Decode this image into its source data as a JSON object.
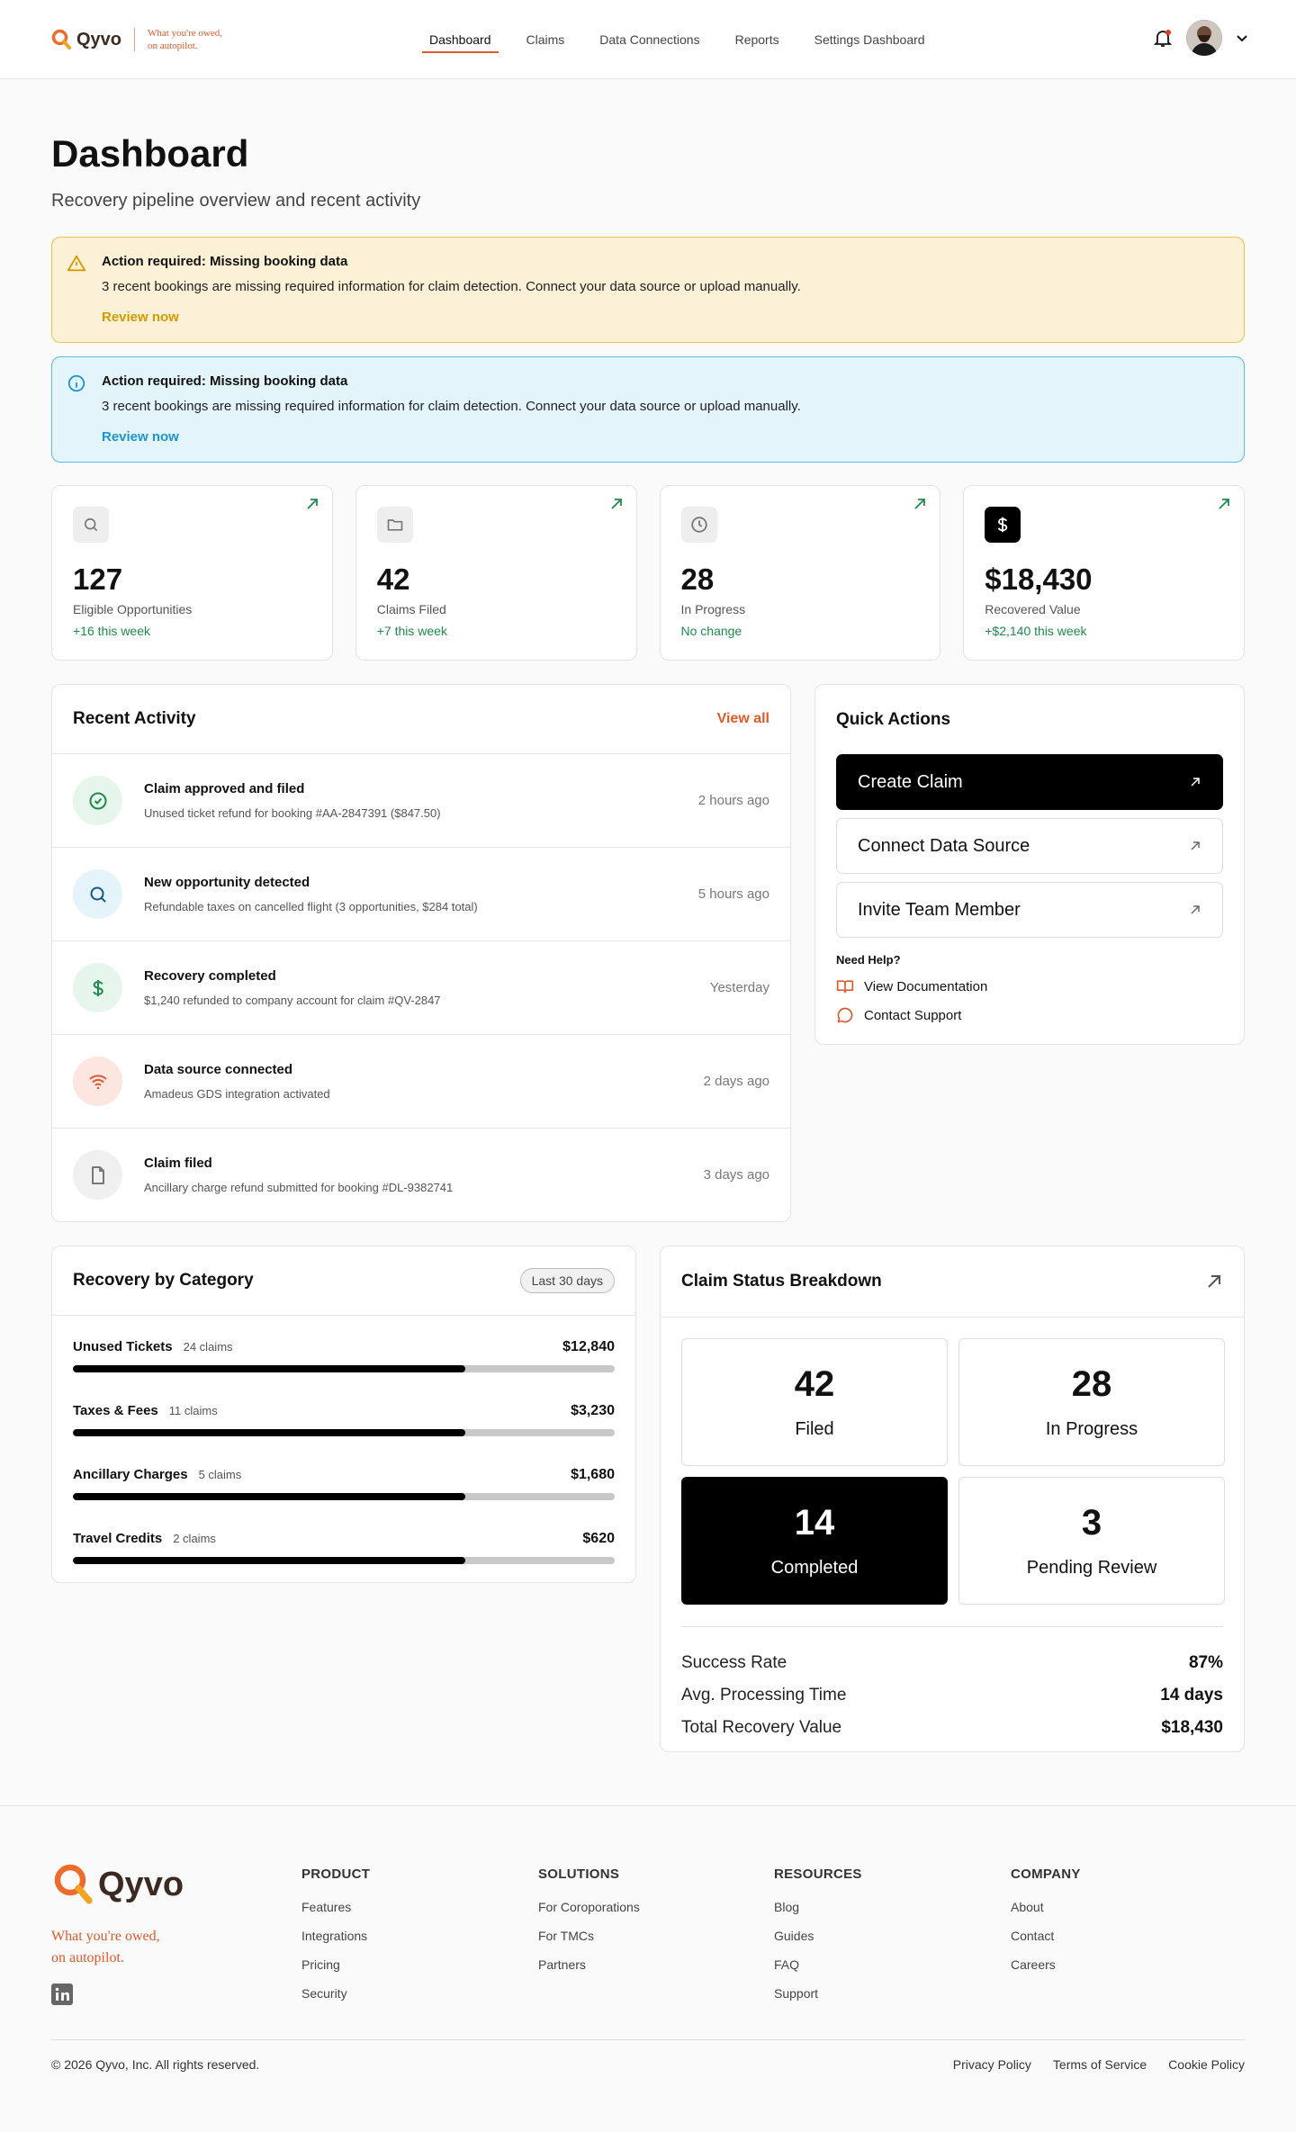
{
  "header": {
    "brand": "Qyvo",
    "tagline": [
      "What you're owed,",
      "on autopilot."
    ],
    "nav": [
      "Dashboard",
      "Claims",
      "Data Connections",
      "Reports",
      "Settings Dashboard"
    ]
  },
  "page": {
    "title": "Dashboard",
    "subtitle": "Recovery pipeline overview and recent activity"
  },
  "alerts": [
    {
      "title": "Action required: Missing booking data",
      "message": "3 recent bookings are missing required information for claim detection. Connect your data source or upload manually.",
      "action": "Review now"
    },
    {
      "title": "Action required: Missing booking data",
      "message": "3 recent bookings are missing required information for claim detection. Connect your data source or upload manually.",
      "action": "Review now"
    }
  ],
  "stats": [
    {
      "value": "127",
      "label": "Eligible Opportunities",
      "change": "+16 this week"
    },
    {
      "value": "42",
      "label": "Claims Filed",
      "change": "+7 this week"
    },
    {
      "value": "28",
      "label": "In Progress",
      "change": "No change"
    },
    {
      "value": "$18,430",
      "label": "Recovered Value",
      "change": "+$2,140 this week"
    }
  ],
  "recent_activity": {
    "title": "Recent Activity",
    "action": "View all",
    "items": [
      {
        "title": "Claim approved and filed",
        "detail": "Unused ticket refund for booking #AA-2847391 ($847.50)",
        "time": "2 hours ago"
      },
      {
        "title": "New opportunity detected",
        "detail": "Refundable taxes on cancelled flight (3 opportunities, $284 total)",
        "time": "5 hours ago"
      },
      {
        "title": "Recovery completed",
        "detail": "$1,240 refunded to company account for claim #QV-2847",
        "time": "Yesterday"
      },
      {
        "title": "Data source connected",
        "detail": "Amadeus GDS integration activated",
        "time": "2 days ago"
      },
      {
        "title": "Claim filed",
        "detail": "Ancillary charge refund submitted for booking #DL-9382741",
        "time": "3 days ago"
      }
    ]
  },
  "quick_actions": {
    "title": "Quick Actions",
    "actions": [
      "Create Claim",
      "Connect Data Source",
      "Invite Team Member"
    ],
    "help_title": "Need Help?",
    "help_links": [
      "View Documentation",
      "Contact Support"
    ]
  },
  "recovery_by_category": {
    "title": "Recovery by Category",
    "badge": "Last 30 days",
    "rows": [
      {
        "name": "Unused Tickets",
        "count": "24 claims",
        "amount": "$12,840"
      },
      {
        "name": "Taxes & Fees",
        "count": "11 claims",
        "amount": "$3,230"
      },
      {
        "name": "Ancillary Charges",
        "count": "5 claims",
        "amount": "$1,680"
      },
      {
        "name": "Travel Credits",
        "count": "2 claims",
        "amount": "$620"
      }
    ]
  },
  "claim_status": {
    "title": "Claim Status Breakdown",
    "tiles": [
      {
        "value": "42",
        "label": "Filed"
      },
      {
        "value": "28",
        "label": "In Progress"
      },
      {
        "value": "14",
        "label": "Completed"
      },
      {
        "value": "3",
        "label": "Pending Review"
      }
    ],
    "metrics": [
      {
        "label": "Success Rate",
        "value": "87%"
      },
      {
        "label": "Avg. Processing Time",
        "value": "14 days"
      },
      {
        "label": "Total Recovery Value",
        "value": "$18,430"
      }
    ]
  },
  "footer": {
    "brand": "Qyvo",
    "tagline": [
      "What you're owed,",
      "on autopilot."
    ],
    "columns": [
      {
        "heading": "PRODUCT",
        "links": [
          "Features",
          "Integrations",
          "Pricing",
          "Security"
        ]
      },
      {
        "heading": "SOLUTIONS",
        "links": [
          "For Coroporations",
          "For TMCs",
          "Partners"
        ]
      },
      {
        "heading": "RESOURCES",
        "links": [
          "Blog",
          "Guides",
          "FAQ",
          "Support"
        ]
      },
      {
        "heading": "COMPANY",
        "links": [
          "About",
          "Contact",
          "Careers"
        ]
      }
    ],
    "copyright": "© 2026 Qyvo, Inc. All rights reserved.",
    "legal": [
      "Privacy Policy",
      "Terms of Service",
      "Cookie Policy"
    ]
  }
}
